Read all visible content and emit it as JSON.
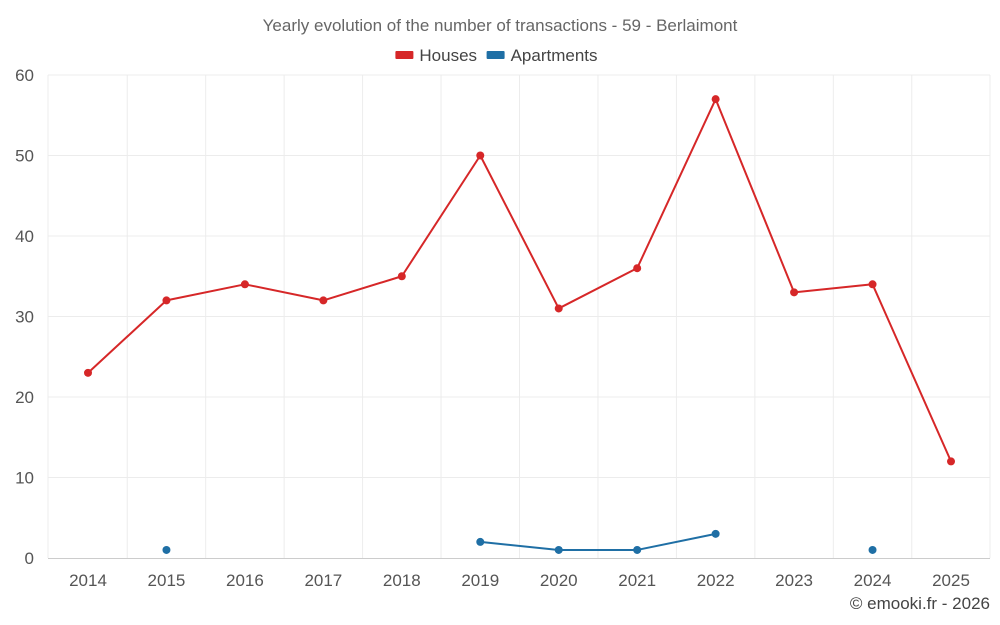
{
  "chart_data": {
    "type": "line",
    "title": "Yearly evolution of the number of transactions - 59 - Berlaimont",
    "xlabel": "",
    "ylabel": "",
    "categories": [
      "2014",
      "2015",
      "2016",
      "2017",
      "2018",
      "2019",
      "2020",
      "2021",
      "2022",
      "2023",
      "2024",
      "2025"
    ],
    "ylim": [
      0,
      60
    ],
    "yticks": [
      "0",
      "10",
      "20",
      "30",
      "40",
      "50",
      "60"
    ],
    "grid": true,
    "legend_position": "top-center",
    "series": [
      {
        "name": "Houses",
        "color": "#d62728",
        "values": [
          23,
          32,
          34,
          32,
          35,
          50,
          31,
          36,
          57,
          33,
          34,
          12
        ]
      },
      {
        "name": "Apartments",
        "color": "#1f6fa5",
        "values": [
          null,
          1,
          null,
          null,
          null,
          2,
          1,
          1,
          3,
          null,
          1,
          null
        ]
      }
    ]
  },
  "credit": "© emooki.fr - 2026"
}
